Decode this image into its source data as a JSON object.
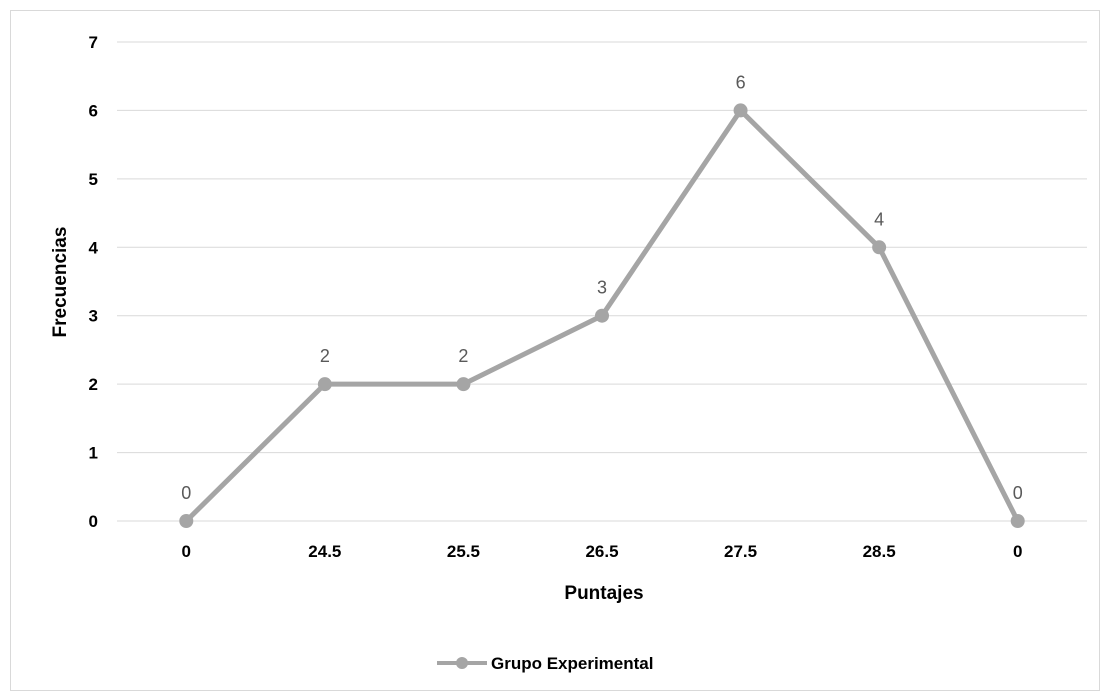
{
  "chart_data": {
    "type": "line",
    "categories": [
      "0",
      "24.5",
      "25.5",
      "26.5",
      "27.5",
      "28.5",
      "0"
    ],
    "series": [
      {
        "name": "Grupo Experimental",
        "values": [
          0,
          2,
          2,
          3,
          6,
          4,
          0
        ],
        "color": "#a5a5a5"
      }
    ],
    "xlabel": "Puntajes",
    "ylabel": "Frecuencias",
    "ylim": [
      0,
      7
    ],
    "yticks": [
      "0",
      "1",
      "2",
      "3",
      "4",
      "5",
      "6",
      "7"
    ],
    "data_labels": [
      "0",
      "2",
      "2",
      "3",
      "6",
      "4",
      "0"
    ],
    "grid": true,
    "legend_position": "bottom",
    "gridline_color": "#d9d9d9",
    "axis_text_color": "#000000",
    "data_label_color": "#595959"
  }
}
